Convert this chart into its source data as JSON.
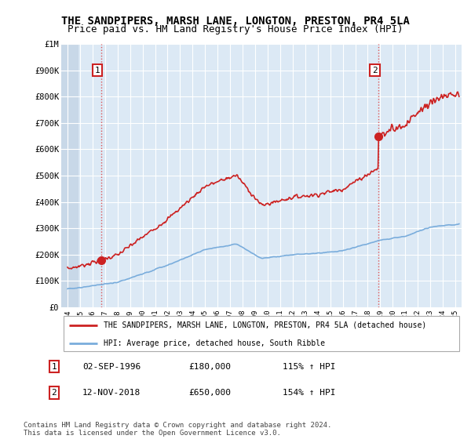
{
  "title": "THE SANDPIPERS, MARSH LANE, LONGTON, PRESTON, PR4 5LA",
  "subtitle": "Price paid vs. HM Land Registry's House Price Index (HPI)",
  "title_fontsize": 10,
  "subtitle_fontsize": 9,
  "ylabel_ticks": [
    "£0",
    "£100K",
    "£200K",
    "£300K",
    "£400K",
    "£500K",
    "£600K",
    "£700K",
    "£800K",
    "£900K",
    "£1M"
  ],
  "ytick_values": [
    0,
    100000,
    200000,
    300000,
    400000,
    500000,
    600000,
    700000,
    800000,
    900000,
    1000000
  ],
  "ylim": [
    0,
    1000000
  ],
  "xlim_start": 1993.5,
  "xlim_end": 2025.5,
  "xtick_years": [
    1994,
    1995,
    1996,
    1997,
    1998,
    1999,
    2000,
    2001,
    2002,
    2003,
    2004,
    2005,
    2006,
    2007,
    2008,
    2009,
    2010,
    2011,
    2012,
    2013,
    2014,
    2015,
    2016,
    2017,
    2018,
    2019,
    2020,
    2021,
    2022,
    2023,
    2024,
    2025
  ],
  "hpi_color": "#7aaddc",
  "hpi_linewidth": 1.2,
  "price_paid_color": "#cc2222",
  "price_paid_linewidth": 1.2,
  "sale1_x": 1996.67,
  "sale1_y": 180000,
  "sale1_label": "1",
  "sale2_x": 2018.87,
  "sale2_y": 650000,
  "sale2_label": "2",
  "vline_color": "#dd4444",
  "vline_style": ":",
  "vline_alpha": 0.9,
  "marker_size": 7,
  "legend_line1": "THE SANDPIPERS, MARSH LANE, LONGTON, PRESTON, PR4 5LA (detached house)",
  "legend_line2": "HPI: Average price, detached house, South Ribble",
  "annotation1_date": "02-SEP-1996",
  "annotation1_price": "£180,000",
  "annotation1_hpi": "115% ↑ HPI",
  "annotation2_date": "12-NOV-2018",
  "annotation2_price": "£650,000",
  "annotation2_hpi": "154% ↑ HPI",
  "footer": "Contains HM Land Registry data © Crown copyright and database right 2024.\nThis data is licensed under the Open Government Licence v3.0.",
  "bg_color": "#ffffff",
  "plot_bg_color": "#dce9f5",
  "grid_color": "#ffffff",
  "hatch_bg_color": "#c8d8e8"
}
